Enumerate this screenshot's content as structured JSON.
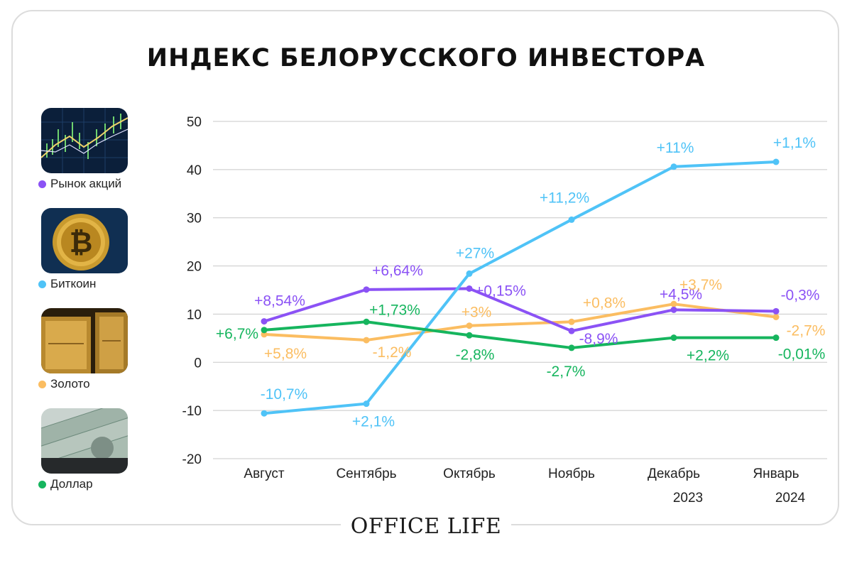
{
  "title": "ИНДЕКС БЕЛОРУССКОГО ИНВЕСТОРА",
  "footer": "OFFICE LIFE",
  "legend": [
    {
      "label": "Рынок акций",
      "color": "#8b52f5",
      "icon": "stock-chart-image"
    },
    {
      "label": "Биткоин",
      "color": "#4fc3f7",
      "icon": "bitcoin-coin-image"
    },
    {
      "label": "Золото",
      "color": "#fbbd61",
      "icon": "gold-bars-image"
    },
    {
      "label": "Доллар",
      "color": "#16b55e",
      "icon": "dollar-bills-image"
    }
  ],
  "chart_data": {
    "type": "line",
    "title": "ИНДЕКС БЕЛОРУССКОГО ИНВЕСТОРА",
    "categories": [
      "Август",
      "Сентябрь",
      "Октябрь",
      "Ноябрь",
      "Декабрь",
      "Январь"
    ],
    "category_sublabels": [
      "",
      "",
      "",
      "",
      "2023",
      "2024"
    ],
    "ylim": [
      -20,
      50
    ],
    "yticks": [
      -20,
      -10,
      0,
      10,
      20,
      30,
      40,
      50
    ],
    "grid": true,
    "legend_position": "left",
    "series": [
      {
        "name": "Рынок акций",
        "color": "#8b52f5",
        "values": [
          8.5,
          15.1,
          15.3,
          6.5,
          10.9,
          10.6
        ],
        "labels": [
          "+8,54%",
          "+6,64%",
          "+0,15%",
          "-8,9%",
          "+4,5%",
          "-0,3%"
        ]
      },
      {
        "name": "Биткоин",
        "color": "#4fc3f7",
        "values": [
          -10.6,
          -8.6,
          18.4,
          29.6,
          40.6,
          41.6
        ],
        "labels": [
          "-10,7%",
          "+2,1%",
          "+27%",
          "+11,2%",
          "+11%",
          "+1,1%"
        ]
      },
      {
        "name": "Золото",
        "color": "#fbbd61",
        "values": [
          5.8,
          4.6,
          7.6,
          8.4,
          12.1,
          9.4
        ],
        "labels": [
          "+5,8%",
          "-1,2%",
          "+3%",
          "+0,8%",
          "+3,7%",
          "-2,7%"
        ]
      },
      {
        "name": "Доллар",
        "color": "#16b55e",
        "values": [
          6.7,
          8.4,
          5.6,
          3.0,
          5.1,
          5.1
        ],
        "labels": [
          "+6,7%",
          "+1,73%",
          "-2,8%",
          "-2,7%",
          "+2,2%",
          "-0,01%"
        ]
      }
    ]
  }
}
